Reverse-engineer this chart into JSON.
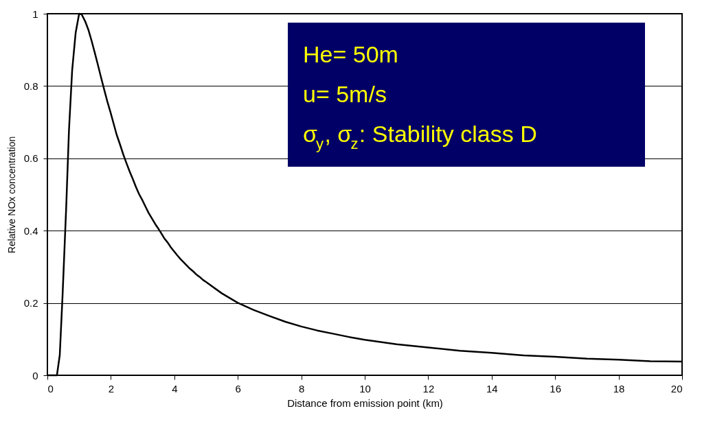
{
  "chart_data": {
    "type": "line",
    "xlabel": "Distance from emission point (km)",
    "ylabel": "Relative NOx concentration",
    "x": [
      0,
      0.1,
      0.2,
      0.3,
      0.39,
      0.48,
      0.59,
      0.68,
      0.78,
      0.89,
      1.0,
      1.08,
      1.19,
      1.29,
      1.39,
      1.49,
      1.59,
      1.69,
      1.79,
      1.89,
      1.99,
      2.09,
      2.18,
      2.29,
      2.39,
      2.49,
      2.59,
      2.69,
      2.79,
      2.89,
      3.0,
      3.1,
      3.19,
      3.3,
      3.4,
      3.5,
      3.6,
      3.69,
      3.8,
      3.89,
      3.99,
      4.09,
      4.19,
      4.29,
      4.39,
      4.49,
      4.6,
      4.69,
      4.8,
      4.9,
      5.0,
      5.49,
      5.99,
      6.49,
      7.0,
      7.5,
      8.0,
      8.5,
      9.0,
      9.5,
      10.0,
      11,
      12,
      13,
      14,
      15,
      16,
      17,
      18,
      19,
      20
    ],
    "series": [
      {
        "color": "#000000",
        "values": [
          0,
          0,
          0,
          0,
          0.056,
          0.225,
          0.459,
          0.678,
          0.843,
          0.947,
          1.0,
          0.998,
          0.979,
          0.956,
          0.926,
          0.893,
          0.859,
          0.824,
          0.79,
          0.757,
          0.727,
          0.695,
          0.666,
          0.638,
          0.611,
          0.587,
          0.564,
          0.543,
          0.521,
          0.501,
          0.483,
          0.465,
          0.449,
          0.433,
          0.418,
          0.405,
          0.391,
          0.378,
          0.366,
          0.354,
          0.343,
          0.332,
          0.322,
          0.313,
          0.304,
          0.295,
          0.287,
          0.279,
          0.272,
          0.264,
          0.258,
          0.227,
          0.201,
          0.181,
          0.164,
          0.148,
          0.135,
          0.124,
          0.115,
          0.106,
          0.098,
          0.086,
          0.077,
          0.068,
          0.062,
          0.055,
          0.051,
          0.046,
          0.043,
          0.039,
          0.038
        ]
      }
    ],
    "xlim": [
      0,
      20
    ],
    "xticks": [
      0,
      2,
      4,
      6,
      8,
      10,
      12,
      14,
      16,
      18,
      20
    ],
    "ylim": [
      0,
      1
    ],
    "yticks": [
      0,
      0.2,
      0.4,
      0.6,
      0.8,
      1
    ],
    "grid": "y",
    "line_style": "solid",
    "annotations": [
      "He= 50m",
      "u= 5m/s",
      "σ$_{y}$, σ$_{z}$: Stability class D"
    ]
  }
}
